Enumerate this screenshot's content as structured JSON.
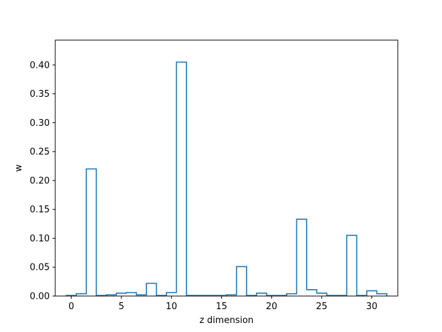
{
  "chart_data": {
    "type": "bar",
    "style": "step-histogram",
    "title": "",
    "xlabel": "z dimension",
    "ylabel": "w",
    "xlim": [
      -1.6,
      32.6
    ],
    "ylim": [
      0,
      0.443
    ],
    "x_ticks": [
      0,
      5,
      10,
      15,
      20,
      25,
      30
    ],
    "y_ticks": [
      0.0,
      0.05,
      0.1,
      0.15,
      0.2,
      0.25,
      0.3,
      0.35,
      0.4
    ],
    "y_tick_labels": [
      "0.00",
      "0.05",
      "0.10",
      "0.15",
      "0.20",
      "0.25",
      "0.30",
      "0.35",
      "0.40"
    ],
    "x_tick_labels": [
      "0",
      "5",
      "10",
      "15",
      "20",
      "25",
      "30"
    ],
    "categories": [
      0,
      1,
      2,
      3,
      4,
      5,
      6,
      7,
      8,
      9,
      10,
      11,
      12,
      13,
      14,
      15,
      16,
      17,
      18,
      19,
      20,
      21,
      22,
      23,
      24,
      25,
      26,
      27,
      28,
      29,
      30,
      31
    ],
    "values": [
      0.001,
      0.004,
      0.22,
      0.001,
      0.002,
      0.005,
      0.006,
      0.002,
      0.022,
      0.001,
      0.006,
      0.405,
      0.001,
      0.001,
      0.001,
      0.001,
      0.002,
      0.051,
      0.001,
      0.005,
      0.001,
      0.001,
      0.004,
      0.133,
      0.011,
      0.005,
      0.001,
      0.001,
      0.105,
      0.001,
      0.009,
      0.004
    ],
    "line_color": "#1f77b4",
    "grid": false,
    "legend": "none"
  }
}
